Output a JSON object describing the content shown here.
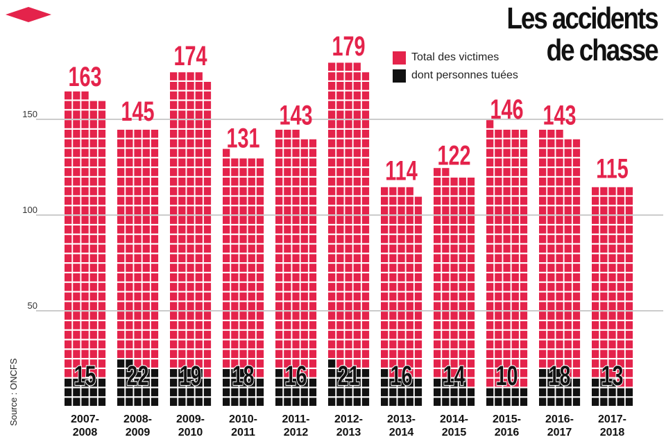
{
  "title": {
    "line1": "Les accidents",
    "line2": "de chasse"
  },
  "legend": {
    "total_label": "Total des victimes",
    "killed_label": "dont personnes tuées"
  },
  "source": "Source : ONCFS",
  "colors": {
    "total": "#e4234b",
    "killed": "#111111",
    "grid": "#9a9a9a",
    "text": "#111111"
  },
  "chart_data": {
    "type": "bar",
    "chart_style": "stacked pictogram squares (one square per victim)",
    "categories": [
      "2007-2008",
      "2008-2009",
      "2009-2010",
      "2010-2011",
      "2011-2012",
      "2012-2013",
      "2013-2014",
      "2014-2015",
      "2015-2016",
      "2016-2017",
      "2017-2018"
    ],
    "series": [
      {
        "name": "Total des victimes",
        "values": [
          163,
          145,
          174,
          131,
          143,
          179,
          114,
          122,
          146,
          143,
          115
        ]
      },
      {
        "name": "dont personnes tuées",
        "values": [
          15,
          22,
          19,
          18,
          16,
          21,
          16,
          14,
          10,
          18,
          13
        ]
      }
    ],
    "y_ticks": [
      50,
      100,
      150
    ],
    "ylim": [
      0,
      185
    ],
    "grid": true,
    "legend_position": "top-right"
  }
}
